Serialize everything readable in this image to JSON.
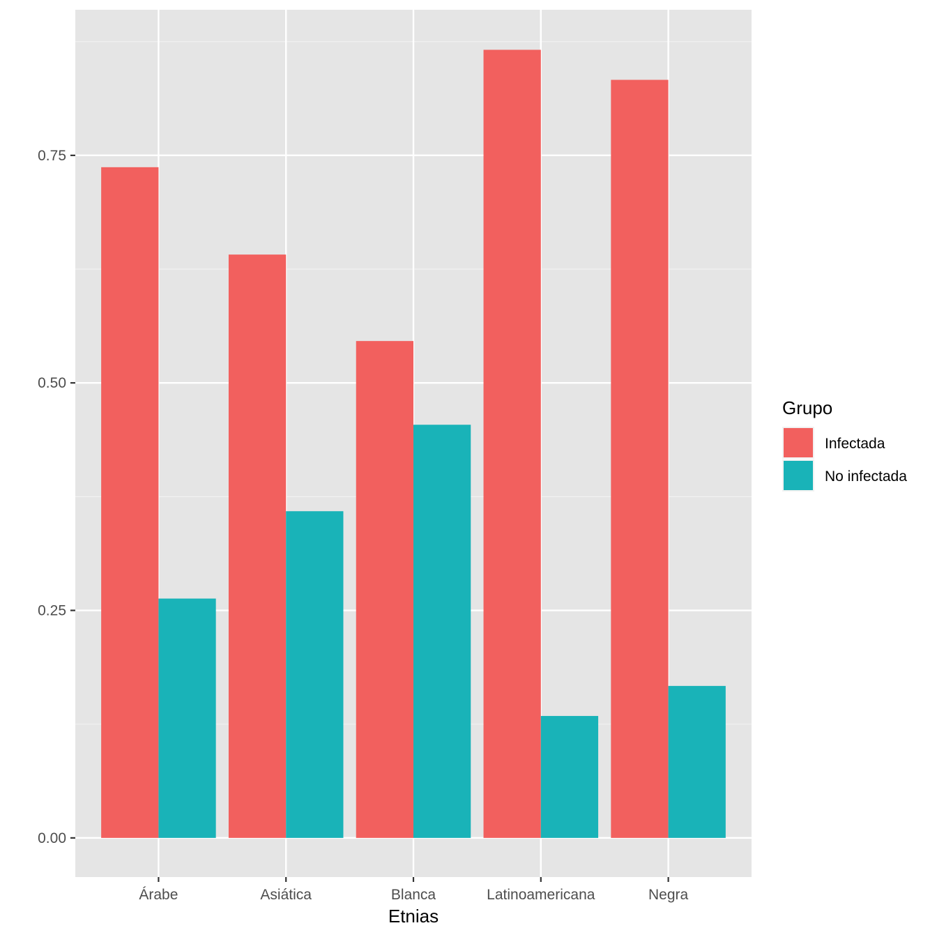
{
  "chart_data": {
    "type": "bar",
    "xlabel": "Etnias",
    "ylabel": "",
    "categories": [
      "Árabe",
      "Asiática",
      "Blanca",
      "Latinoamericana",
      "Negra"
    ],
    "series": [
      {
        "name": "Infectada",
        "color": "#F8766D",
        "values": [
          0.737,
          0.641,
          0.546,
          0.866,
          0.833
        ]
      },
      {
        "name": "No infectada",
        "color": "#00BFC4",
        "values": [
          0.263,
          0.359,
          0.454,
          0.134,
          0.167
        ]
      }
    ],
    "ylim": [
      -0.043,
      0.91
    ],
    "yticks": [
      0.0,
      0.25,
      0.5,
      0.75
    ],
    "ytick_labels": [
      "0.00",
      "0.25",
      "0.50",
      "0.75"
    ],
    "grid": true,
    "legend": {
      "title": "Grupo",
      "position": "right"
    },
    "bar_colors_rendered": {
      "Infectada": "#F2605E",
      "No infectada": "#19B3B8"
    },
    "panel_background": "#E5E5E5"
  }
}
